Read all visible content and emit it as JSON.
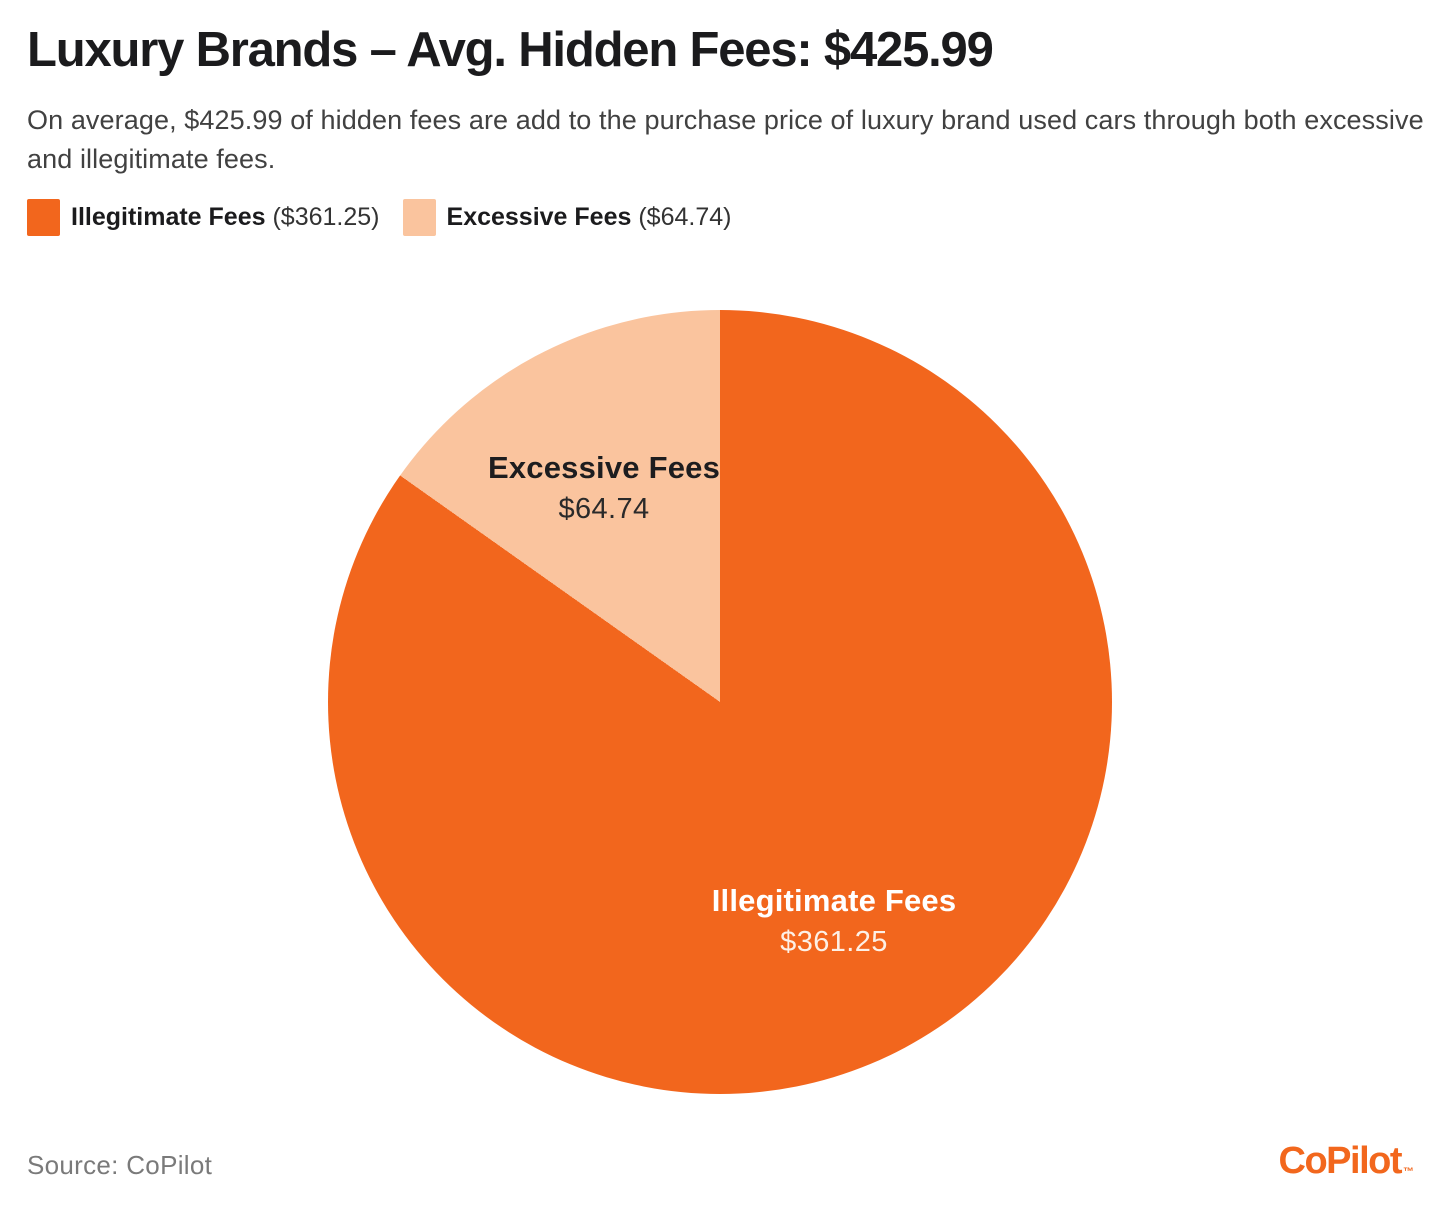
{
  "header": {
    "title": "Luxury Brands – Avg. Hidden Fees: $425.99",
    "subtitle": "On average, $425.99 of hidden fees are add to the purchase price of luxury brand used cars through both excessive and illegitimate fees."
  },
  "legend": {
    "items": [
      {
        "label": "Illegitimate Fees",
        "value_text": "($361.25)",
        "color": "#F2661D"
      },
      {
        "label": "Excessive Fees",
        "value_text": "($64.74)",
        "color": "#FAC49E"
      }
    ]
  },
  "chart_data": {
    "type": "pie",
    "title": "Luxury Brands – Avg. Hidden Fees: $425.99",
    "total": 425.99,
    "total_label": "$425.99",
    "start_angle_deg": 0,
    "direction": "clockwise",
    "labels_inside": true,
    "legend_position": "top-left",
    "slices": [
      {
        "label": "Illegitimate Fees",
        "value": 361.25,
        "value_label": "$361.25",
        "color": "#F2661D",
        "text_color": "#FFFFFF"
      },
      {
        "label": "Excessive Fees",
        "value": 64.74,
        "value_label": "$64.74",
        "color": "#FAC49E",
        "text_color": "#1D1D1F"
      }
    ]
  },
  "footer": {
    "source": "Source: CoPilot",
    "brand": "CoPilot",
    "trademark": "™"
  },
  "colors": {
    "accent_orange": "#F2661D",
    "accent_peach": "#FAC49E",
    "title_text": "#1B1B1D",
    "body_text": "#414141",
    "muted_text": "#7A7A7A",
    "background": "#FFFFFF"
  }
}
